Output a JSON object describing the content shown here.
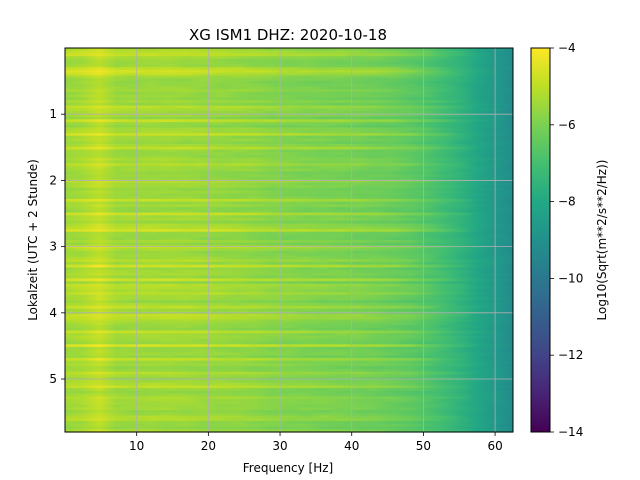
{
  "chart_data": {
    "type": "heatmap",
    "title": "XG ISM1  DHZ: 2020-10-18",
    "xlabel": "Frequency [Hz]",
    "ylabel": "Lokalzeit (UTC + 2 Stunde)",
    "xlim": [
      0,
      62.5
    ],
    "ylim": [
      5.8,
      0
    ],
    "xticks": [
      10,
      20,
      30,
      40,
      50,
      60
    ],
    "yticks": [
      1,
      2,
      3,
      4,
      5
    ],
    "grid": true,
    "colormap": "viridis",
    "colorbar": {
      "label": "Log10(Sqrt(m**2/s**2/Hz))",
      "range": [
        -14,
        -4
      ],
      "ticks": [
        -4,
        -6,
        -8,
        -10,
        -12,
        -14
      ],
      "tick_labels": [
        "−4",
        "−6",
        "−8",
        "−10",
        "−12",
        "−14"
      ]
    },
    "spectral_profile": {
      "frequency_hz": [
        0,
        2,
        4,
        5.5,
        7,
        10,
        15,
        20,
        25,
        30,
        35,
        40,
        45,
        48,
        50,
        52,
        55,
        58,
        60,
        62.5
      ],
      "log_amplitude": [
        -5.5,
        -5.4,
        -5.2,
        -4.8,
        -5.5,
        -5.5,
        -5.5,
        -5.6,
        -5.7,
        -5.9,
        -6.0,
        -6.1,
        -6.3,
        -6.5,
        -6.7,
        -7.0,
        -7.5,
        -8.2,
        -8.6,
        -9.2
      ]
    },
    "strong_rows_hours": [
      0.05,
      0.1,
      0.3,
      0.35,
      0.4,
      0.9,
      1.1,
      1.3,
      1.5,
      1.75,
      2.0,
      2.3,
      2.5,
      2.7,
      2.75,
      3.0,
      3.2,
      3.3,
      3.5,
      3.6,
      3.7,
      3.9,
      4.05,
      4.1,
      4.3,
      4.5,
      4.7,
      4.9,
      5.1,
      5.3,
      5.6
    ]
  }
}
